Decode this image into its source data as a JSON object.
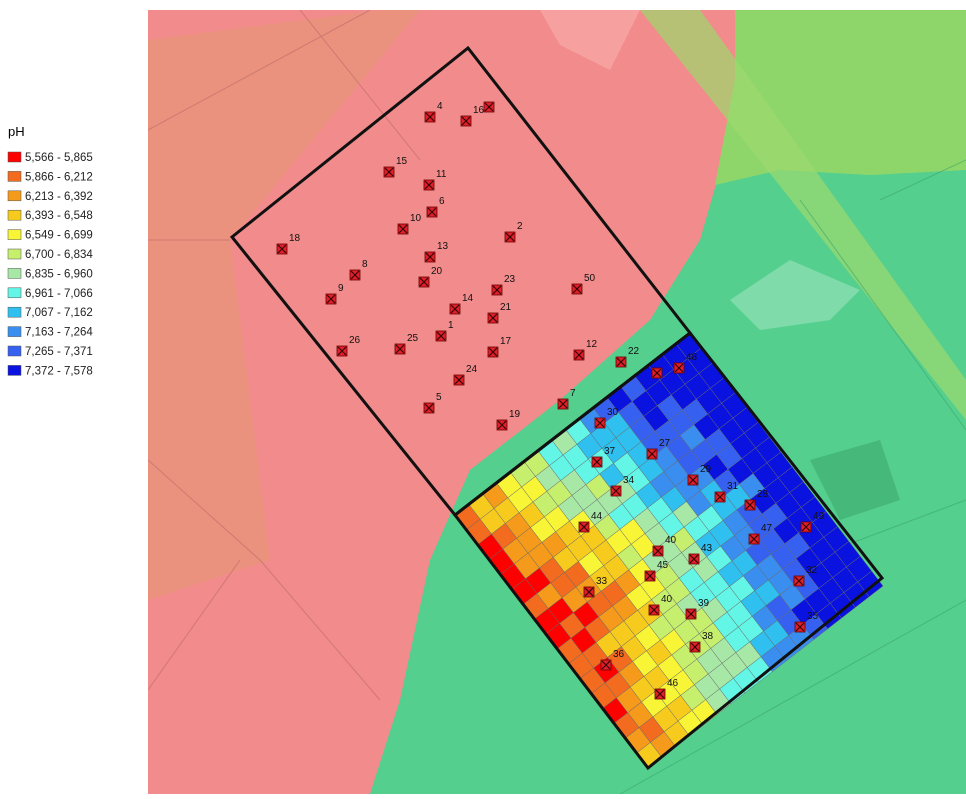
{
  "legend": {
    "title": "pH",
    "items": [
      {
        "label": "5,566 - 5,865",
        "color": "#ff0000"
      },
      {
        "label": "5,866 - 6,212",
        "color": "#f26b1e"
      },
      {
        "label": "6,213 - 6,392",
        "color": "#f59a1a"
      },
      {
        "label": "6,393 - 6,548",
        "color": "#f7cb1e"
      },
      {
        "label": "6,549 - 6,699",
        "color": "#f7f536"
      },
      {
        "label": "6,700 - 6,834",
        "color": "#c6ef6e"
      },
      {
        "label": "6,835 - 6,960",
        "color": "#a8e8a6"
      },
      {
        "label": "6,961 - 7,066",
        "color": "#63f5e6"
      },
      {
        "label": "7,067 - 7,162",
        "color": "#2fc0f0"
      },
      {
        "label": "7,163 - 7,264",
        "color": "#3a8ef0"
      },
      {
        "label": "7,265 - 7,371",
        "color": "#3560f0"
      },
      {
        "label": "7,372 - 7,578",
        "color": "#0a12e0"
      }
    ]
  },
  "points": [
    {
      "label": "4"
    },
    {
      "label": "16"
    },
    {
      "label": "15"
    },
    {
      "label": "11"
    },
    {
      "label": "6"
    },
    {
      "label": "10"
    },
    {
      "label": "2"
    },
    {
      "label": "18"
    },
    {
      "label": "13"
    },
    {
      "label": "20"
    },
    {
      "label": "8"
    },
    {
      "label": "9"
    },
    {
      "label": "23"
    },
    {
      "label": "50"
    },
    {
      "label": "14"
    },
    {
      "label": "21"
    },
    {
      "label": "1"
    },
    {
      "label": "26"
    },
    {
      "label": "25"
    },
    {
      "label": "17"
    },
    {
      "label": "12"
    },
    {
      "label": "22"
    },
    {
      "label": "24"
    },
    {
      "label": "48"
    },
    {
      "label": "7"
    },
    {
      "label": "5"
    },
    {
      "label": "19"
    },
    {
      "label": "30"
    },
    {
      "label": "27"
    },
    {
      "label": "37"
    },
    {
      "label": "34"
    },
    {
      "label": "29"
    },
    {
      "label": "31"
    },
    {
      "label": "28"
    },
    {
      "label": "44"
    },
    {
      "label": "49"
    },
    {
      "label": "47"
    },
    {
      "label": "40"
    },
    {
      "label": "43"
    },
    {
      "label": "45"
    },
    {
      "label": "33"
    },
    {
      "label": "32"
    },
    {
      "label": "40"
    },
    {
      "label": "39"
    },
    {
      "label": "35"
    },
    {
      "label": "38"
    },
    {
      "label": "36"
    },
    {
      "label": "46"
    }
  ]
}
